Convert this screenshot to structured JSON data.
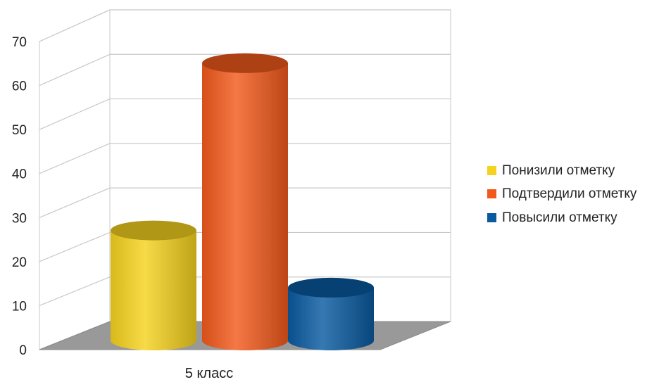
{
  "chart_data": {
    "type": "bar",
    "style": "3d-cylinder",
    "categories": [
      "5 класс"
    ],
    "series": [
      {
        "name": "Понизили отметку",
        "values": [
          25
        ],
        "color": "#f5d21f"
      },
      {
        "name": "Подтвердили отметку",
        "values": [
          63
        ],
        "color": "#f25a1c"
      },
      {
        "name": "Повысили отметку",
        "values": [
          12
        ],
        "color": "#0a5aa0"
      }
    ],
    "title": "",
    "xlabel": "",
    "ylabel": "",
    "ylim": [
      0,
      70
    ],
    "yticks": [
      0,
      10,
      20,
      30,
      40,
      50,
      60,
      70
    ],
    "grid": true,
    "legend_position": "right"
  }
}
